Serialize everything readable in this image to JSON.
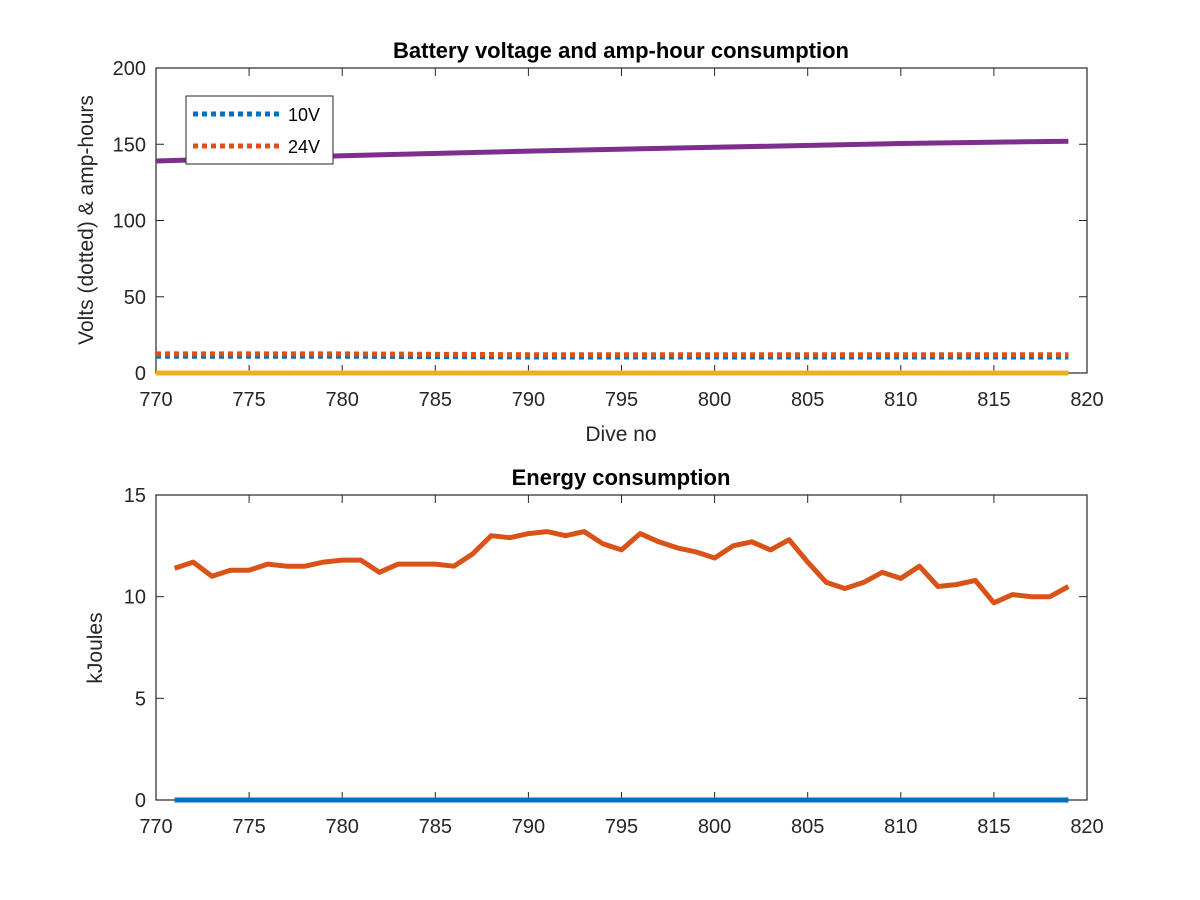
{
  "chart_data": [
    {
      "type": "line",
      "title": "Battery voltage and amp-hour consumption",
      "xlabel": "Dive no",
      "ylabel": "Volts (dotted) & amp-hours",
      "xlim": [
        770,
        820
      ],
      "ylim": [
        0,
        200
      ],
      "xticks": [
        "770",
        "775",
        "780",
        "785",
        "790",
        "795",
        "800",
        "805",
        "810",
        "815",
        "820"
      ],
      "yticks": [
        "0",
        "50",
        "100",
        "150",
        "200"
      ],
      "grid": false,
      "legend_position": "top-left",
      "series": [
        {
          "name": "10V",
          "color": "#0072BD",
          "style": "dotted",
          "x": [
            770,
            780,
            790,
            800,
            810,
            819
          ],
          "y": [
            11,
            11,
            10.5,
            10.5,
            10.5,
            10.5
          ]
        },
        {
          "name": "24V",
          "color": "#D95319",
          "style": "dotted",
          "x": [
            770,
            780,
            790,
            800,
            810,
            819
          ],
          "y": [
            12.5,
            12.5,
            12,
            12,
            12,
            12
          ]
        },
        {
          "color": "#7E2F8E",
          "style": "solid",
          "x": [
            770,
            780,
            790,
            800,
            810,
            819
          ],
          "y": [
            139,
            142.5,
            145.5,
            148,
            150.5,
            152
          ]
        },
        {
          "color": "#EDB120",
          "style": "solid",
          "x": [
            770,
            819
          ],
          "y": [
            0,
            0
          ]
        }
      ]
    },
    {
      "type": "line",
      "title": "Energy consumption",
      "xlabel": "",
      "ylabel": "kJoules",
      "xlim": [
        770,
        820
      ],
      "ylim": [
        0,
        15
      ],
      "xticks": [
        "770",
        "775",
        "780",
        "785",
        "790",
        "795",
        "800",
        "805",
        "810",
        "815",
        "820"
      ],
      "yticks": [
        "0",
        "5",
        "10",
        "15"
      ],
      "grid": false,
      "series": [
        {
          "color": "#D95319",
          "style": "solid",
          "x": [
            771,
            772,
            773,
            774,
            775,
            776,
            777,
            778,
            779,
            780,
            781,
            782,
            783,
            784,
            785,
            786,
            787,
            788,
            789,
            790,
            791,
            792,
            793,
            794,
            795,
            796,
            797,
            798,
            799,
            800,
            801,
            802,
            803,
            804,
            805,
            806,
            807,
            808,
            809,
            810,
            811,
            812,
            813,
            814,
            815,
            816,
            817,
            818,
            819
          ],
          "y": [
            11.4,
            11.7,
            11.0,
            11.3,
            11.3,
            11.6,
            11.5,
            11.5,
            11.7,
            11.8,
            11.8,
            11.2,
            11.6,
            11.6,
            11.6,
            11.5,
            12.1,
            13.0,
            12.9,
            13.1,
            13.2,
            13.0,
            13.2,
            12.6,
            12.3,
            13.1,
            12.7,
            12.4,
            12.2,
            11.9,
            12.5,
            12.7,
            12.3,
            12.8,
            11.7,
            10.7,
            10.4,
            10.7,
            11.2,
            10.9,
            11.5,
            10.5,
            10.6,
            10.8,
            9.7,
            10.1,
            10.0,
            10.0,
            10.5
          ]
        },
        {
          "color": "#0072BD",
          "style": "solid",
          "x": [
            771,
            819
          ],
          "y": [
            0,
            0
          ]
        }
      ]
    }
  ]
}
